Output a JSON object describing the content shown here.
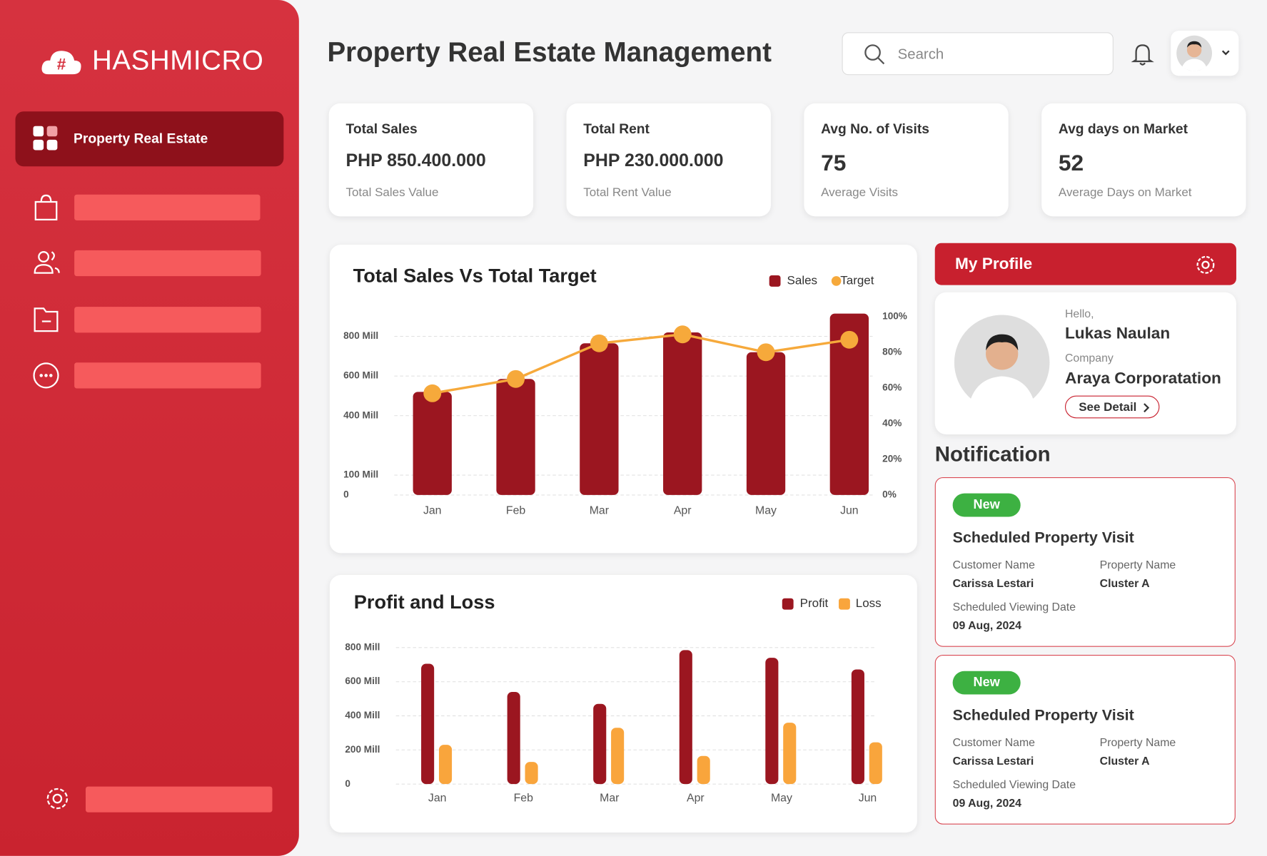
{
  "brand": {
    "name": "HASHMICRO"
  },
  "sidebar": {
    "active_item": "Property Real Estate"
  },
  "header": {
    "title": "Property Real Estate Management",
    "search_placeholder": "Search"
  },
  "kpis": [
    {
      "title": "Total Sales",
      "value": "PHP 850.400.000",
      "caption": "Total Sales Value"
    },
    {
      "title": "Total Rent",
      "value": "PHP 230.000.000",
      "caption": "Total Rent Value"
    },
    {
      "title": "Avg No. of Visits",
      "value": 75,
      "caption": "Average Visits"
    },
    {
      "title": "Avg days on Market",
      "value": 52,
      "caption": "Average Days on Market"
    }
  ],
  "chart_data": [
    {
      "type": "bar",
      "title": "Total Sales Vs Total Target",
      "categories": [
        "Jan",
        "Feb",
        "Mar",
        "Apr",
        "May",
        "Jun"
      ],
      "series": [
        {
          "name": "Sales",
          "color": "#9b1620",
          "type": "bar",
          "values": [
            520,
            585,
            765,
            820,
            720,
            915
          ]
        },
        {
          "name": "Target",
          "color": "#f6a93b",
          "type": "line",
          "axis": "y2",
          "values": [
            57,
            65,
            85,
            90,
            80,
            87
          ]
        }
      ],
      "ylim": [
        0,
        900
      ],
      "yticks": [
        0,
        {
          "value": 100,
          "label": "100 Mill"
        },
        {
          "value": 400,
          "label": "400 Mill"
        },
        {
          "value": 600,
          "label": "600 Mill"
        },
        {
          "value": 800,
          "label": "800 Mill"
        }
      ],
      "y2lim": [
        0,
        100
      ],
      "y2ticks": [
        {
          "value": 0,
          "label": "0%"
        },
        {
          "value": 20,
          "label": "20%"
        },
        {
          "value": 40,
          "label": "40%"
        },
        {
          "value": 60,
          "label": "60%"
        },
        {
          "value": 80,
          "label": "80%"
        },
        {
          "value": 100,
          "label": "100%"
        }
      ],
      "grid": true
    },
    {
      "type": "bar",
      "title": "Profit and Loss",
      "categories": [
        "Jan",
        "Feb",
        "Mar",
        "Apr",
        "May",
        "Jun"
      ],
      "series": [
        {
          "name": "Profit",
          "color": "#9b1620",
          "type": "bar",
          "values": [
            705,
            540,
            470,
            785,
            740,
            672
          ]
        },
        {
          "name": "Loss",
          "color": "#f9a53c",
          "type": "bar",
          "values": [
            230,
            130,
            330,
            165,
            360,
            245
          ]
        }
      ],
      "ylim": [
        0,
        850
      ],
      "yticks": [
        0,
        {
          "value": 200,
          "label": "200 Mill"
        },
        {
          "value": 400,
          "label": "400 Mill"
        },
        {
          "value": 600,
          "label": "600 Mill"
        },
        {
          "value": 800,
          "label": "800 Mill"
        }
      ],
      "grid": true
    }
  ],
  "profile": {
    "title": "My Profile",
    "greeting": "Hello,",
    "name": "Lukas Naulan",
    "company_label": "Company",
    "company": "Araya Corporatation",
    "button": "See Detail"
  },
  "notifications": {
    "title": "Notification",
    "items": [
      {
        "badge": "New",
        "title": "Scheduled Property Visit",
        "customer_label": "Customer Name",
        "customer": "Carissa Lestari",
        "property_label": "Property Name",
        "property": "Cluster A",
        "date_label": "Scheduled Viewing Date",
        "date": "09 Aug, 2024"
      },
      {
        "badge": "New",
        "title": "Scheduled Property Visit",
        "customer_label": "Customer Name",
        "customer": "Carissa Lestari",
        "property_label": "Property Name",
        "property": "Cluster A",
        "date_label": "Scheduled Viewing Date",
        "date": "09 Aug, 2024"
      }
    ]
  }
}
